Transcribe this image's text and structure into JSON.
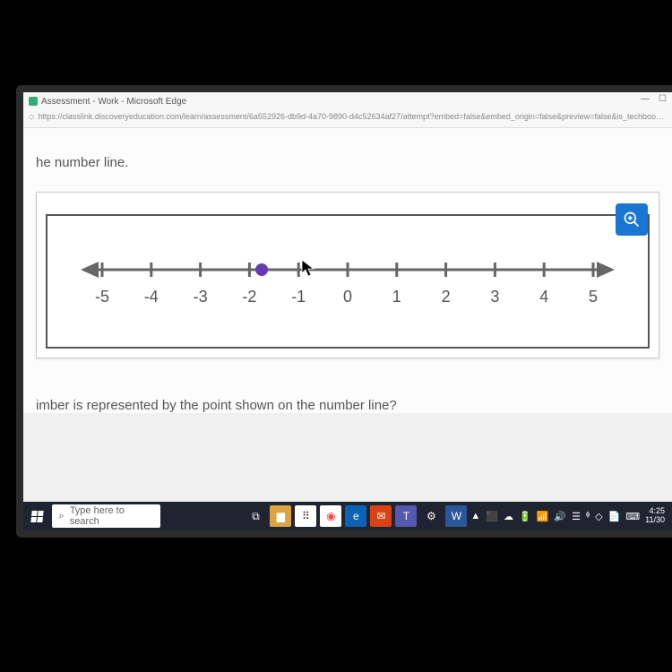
{
  "browser": {
    "tab_title": "Assessment - Work - Microsoft Edge",
    "url": "https://classlink.discoveryeducation.com/learn/assessment/6a552926-db9d-4a70-9890-d4c52634af27/attempt?embed=false&embed_origin=false&preview=false&is_techbook=false&teacher_mode=f...",
    "minimize": "—",
    "maximize": "☐",
    "close": "✕"
  },
  "content": {
    "prompt_top": "he number line.",
    "prompt_bottom": "imber is represented by the point shown on the number line?"
  },
  "number_line": {
    "min": -5,
    "max": 5,
    "ticks": [
      -5,
      -4,
      -3,
      -2,
      -1,
      0,
      1,
      2,
      3,
      4,
      5
    ],
    "point_value": -1.75,
    "axis_color": "#666666",
    "point_color": "#673ab7",
    "point_radius": 7,
    "tick_height": 16,
    "label_fontsize": 18
  },
  "zoom": {
    "icon": "zoom-in"
  },
  "taskbar": {
    "search_placeholder": "Type here to search",
    "icons": [
      {
        "name": "task-view",
        "bg": "#1f2430",
        "glyph": "⧉"
      },
      {
        "name": "file-explorer",
        "bg": "#d9a441",
        "glyph": "▆"
      },
      {
        "name": "calendar",
        "bg": "#ffffff",
        "glyph": "⠿",
        "fg": "#333"
      },
      {
        "name": "chrome",
        "bg": "#ffffff",
        "glyph": "◉",
        "fg": "#f44"
      },
      {
        "name": "edge",
        "bg": "#0b63b8",
        "glyph": "e"
      },
      {
        "name": "mail",
        "bg": "#d84315",
        "glyph": "✉"
      },
      {
        "name": "teams",
        "bg": "#5558af",
        "glyph": "T"
      },
      {
        "name": "settings",
        "bg": "#1f2430",
        "glyph": "⚙"
      },
      {
        "name": "word",
        "bg": "#2b579a",
        "glyph": "W"
      }
    ],
    "tray": {
      "items": [
        "▲",
        "⬛",
        "☁",
        "🔋",
        "📶",
        "🔊",
        "☰",
        "ᶲ",
        "◇",
        "📄",
        "⌨"
      ],
      "time": "4:25",
      "date": "11/30"
    }
  }
}
